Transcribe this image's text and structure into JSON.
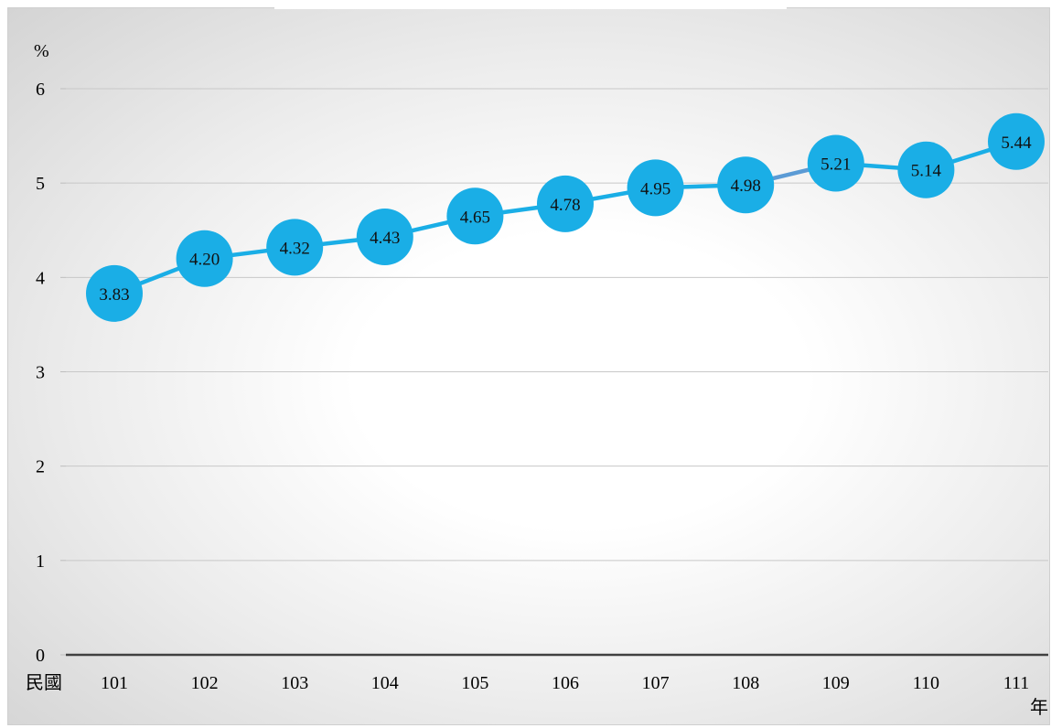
{
  "chart_data": {
    "type": "line",
    "title": "",
    "y_unit_label": "%",
    "x_prefix_label": "民國",
    "x_unit_label": "年",
    "categories": [
      "101",
      "102",
      "103",
      "104",
      "105",
      "106",
      "107",
      "108",
      "109",
      "110",
      "111"
    ],
    "series": [
      {
        "values": [
          3.83,
          4.2,
          4.32,
          4.43,
          4.65,
          4.78,
          4.95,
          4.98,
          5.21,
          5.14,
          5.44
        ],
        "data_labels": [
          "3.83",
          "4.20",
          "4.32",
          "4.43",
          "4.65",
          "4.78",
          "4.95",
          "4.98",
          "5.21",
          "5.14",
          "5.44"
        ],
        "color": "#1aaee6"
      }
    ],
    "y_ticks": [
      "0",
      "1",
      "2",
      "3",
      "4",
      "5",
      "6"
    ],
    "ylim": [
      0,
      6
    ],
    "grid": true,
    "legend": "none",
    "marker_color": "#1aaee6",
    "highlight_segment_color": "#5b9bd5"
  }
}
